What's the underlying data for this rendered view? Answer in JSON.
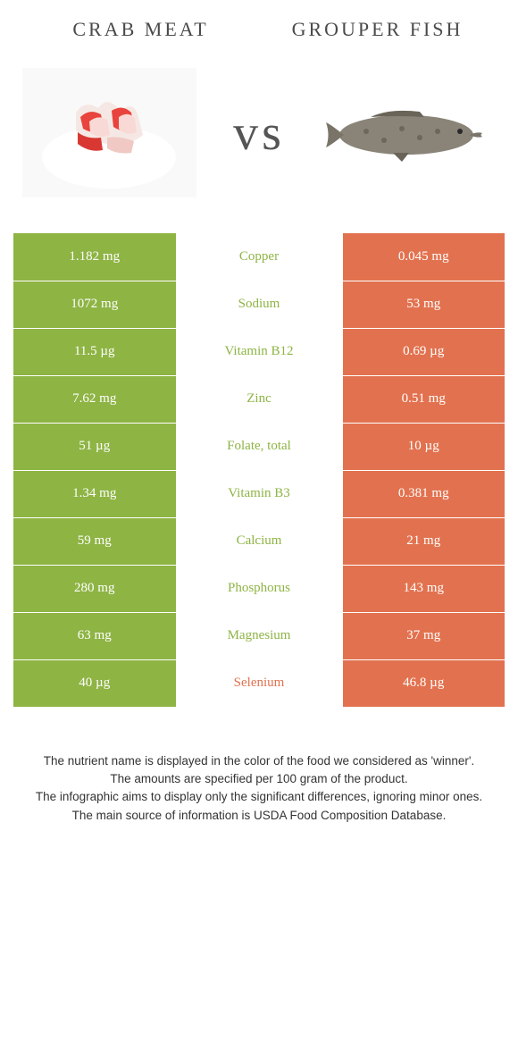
{
  "colors": {
    "left_food": "#8eb444",
    "right_food": "#e2724f",
    "label_text": "#4a4a4a"
  },
  "left_food": {
    "title": "crab meat"
  },
  "right_food": {
    "title": "grouper fish"
  },
  "vs_label": "vs",
  "nutrients": [
    {
      "name": "Copper",
      "left": "1.182 mg",
      "right": "0.045 mg",
      "winner": "left"
    },
    {
      "name": "Sodium",
      "left": "1072 mg",
      "right": "53 mg",
      "winner": "left"
    },
    {
      "name": "Vitamin B12",
      "left": "11.5 µg",
      "right": "0.69 µg",
      "winner": "left"
    },
    {
      "name": "Zinc",
      "left": "7.62 mg",
      "right": "0.51 mg",
      "winner": "left"
    },
    {
      "name": "Folate, total",
      "left": "51 µg",
      "right": "10 µg",
      "winner": "left"
    },
    {
      "name": "Vitamin B3",
      "left": "1.34 mg",
      "right": "0.381 mg",
      "winner": "left"
    },
    {
      "name": "Calcium",
      "left": "59 mg",
      "right": "21 mg",
      "winner": "left"
    },
    {
      "name": "Phosphorus",
      "left": "280 mg",
      "right": "143 mg",
      "winner": "left"
    },
    {
      "name": "Magnesium",
      "left": "63 mg",
      "right": "37 mg",
      "winner": "left"
    },
    {
      "name": "Selenium",
      "left": "40 µg",
      "right": "46.8 µg",
      "winner": "right"
    }
  ],
  "footer": {
    "line1": "The nutrient name is displayed in the color of the food we considered as 'winner'.",
    "line2": "The amounts are specified per 100 gram of the product.",
    "line3": "The infographic aims to display only the significant differences, ignoring minor ones.",
    "line4": "The main source of information is USDA Food Composition Database."
  }
}
